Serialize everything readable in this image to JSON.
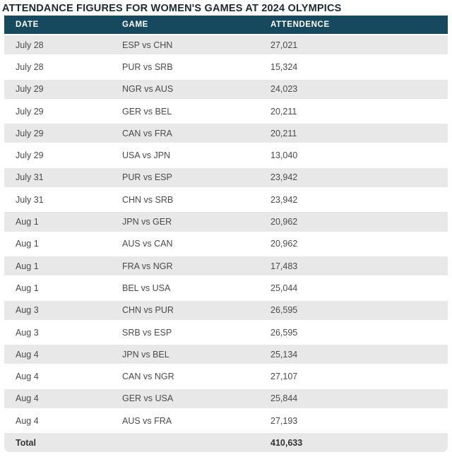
{
  "title": "ATTENDANCE FIGURES FOR WOMEN'S GAMES AT 2024 OLYMPICS",
  "table": {
    "columns": [
      "DATE",
      "GAME",
      "ATTENDENCE"
    ],
    "rows": [
      {
        "date": "July 28",
        "game": "ESP vs CHN",
        "attendance": "27,021"
      },
      {
        "date": "July 28",
        "game": "PUR vs SRB",
        "attendance": "15,324"
      },
      {
        "date": "July 29",
        "game": "NGR vs AUS",
        "attendance": "24,023"
      },
      {
        "date": "July 29",
        "game": "GER vs BEL",
        "attendance": "20,211"
      },
      {
        "date": "July 29",
        "game": "CAN vs FRA",
        "attendance": "20,211"
      },
      {
        "date": "July 29",
        "game": "USA vs JPN",
        "attendance": "13,040"
      },
      {
        "date": "July 31",
        "game": "PUR vs ESP",
        "attendance": "23,942"
      },
      {
        "date": "July 31",
        "game": "CHN vs SRB",
        "attendance": "23,942"
      },
      {
        "date": "Aug 1",
        "game": "JPN vs GER",
        "attendance": "20,962"
      },
      {
        "date": "Aug 1",
        "game": "AUS vs CAN",
        "attendance": "20,962"
      },
      {
        "date": "Aug 1",
        "game": "FRA vs NGR",
        "attendance": "17,483"
      },
      {
        "date": "Aug 1",
        "game": "BEL vs USA",
        "attendance": "25,044"
      },
      {
        "date": "Aug 3",
        "game": "CHN vs PUR",
        "attendance": "26,595"
      },
      {
        "date": "Aug 3",
        "game": "SRB vs ESP",
        "attendance": "26,595"
      },
      {
        "date": "Aug 4",
        "game": "JPN vs BEL",
        "attendance": "25,134"
      },
      {
        "date": "Aug 4",
        "game": "CAN vs NGR",
        "attendance": "27,107"
      },
      {
        "date": "Aug 4",
        "game": "GER vs USA",
        "attendance": "25,844"
      },
      {
        "date": "Aug 4",
        "game": "AUS vs FRA",
        "attendance": "27,193"
      }
    ],
    "total": {
      "label": "Total",
      "value": "410,633"
    }
  },
  "chart_data": {
    "type": "table",
    "title": "ATTENDANCE FIGURES FOR WOMEN'S GAMES AT 2024 OLYMPICS",
    "columns": [
      "DATE",
      "GAME",
      "ATTENDENCE"
    ],
    "rows": [
      [
        "July 28",
        "ESP vs CHN",
        27021
      ],
      [
        "July 28",
        "PUR vs SRB",
        15324
      ],
      [
        "July 29",
        "NGR vs AUS",
        24023
      ],
      [
        "July 29",
        "GER vs BEL",
        20211
      ],
      [
        "July 29",
        "CAN vs FRA",
        20211
      ],
      [
        "July 29",
        "USA vs JPN",
        13040
      ],
      [
        "July 31",
        "PUR vs ESP",
        23942
      ],
      [
        "July 31",
        "CHN vs SRB",
        23942
      ],
      [
        "Aug 1",
        "JPN vs GER",
        20962
      ],
      [
        "Aug 1",
        "AUS vs CAN",
        20962
      ],
      [
        "Aug 1",
        "FRA vs NGR",
        17483
      ],
      [
        "Aug 1",
        "BEL vs USA",
        25044
      ],
      [
        "Aug 3",
        "CHN vs PUR",
        26595
      ],
      [
        "Aug 3",
        "SRB vs ESP",
        26595
      ],
      [
        "Aug 4",
        "JPN vs BEL",
        25134
      ],
      [
        "Aug 4",
        "CAN vs NGR",
        27107
      ],
      [
        "Aug 4",
        "GER vs USA",
        25844
      ],
      [
        "Aug 4",
        "AUS vs FRA",
        27193
      ]
    ],
    "total": {
      "label": "Total",
      "value": 410633
    }
  },
  "colors": {
    "header_bg": "#17495E",
    "header_text": "#FFFFFF",
    "stripe_bg": "#E8E8E8",
    "row_bg": "#FFFFFF",
    "title_text": "#1E2A33",
    "row_text": "#4A4A4A",
    "total_text": "#333333",
    "page_bg": "#FFFFFF"
  }
}
